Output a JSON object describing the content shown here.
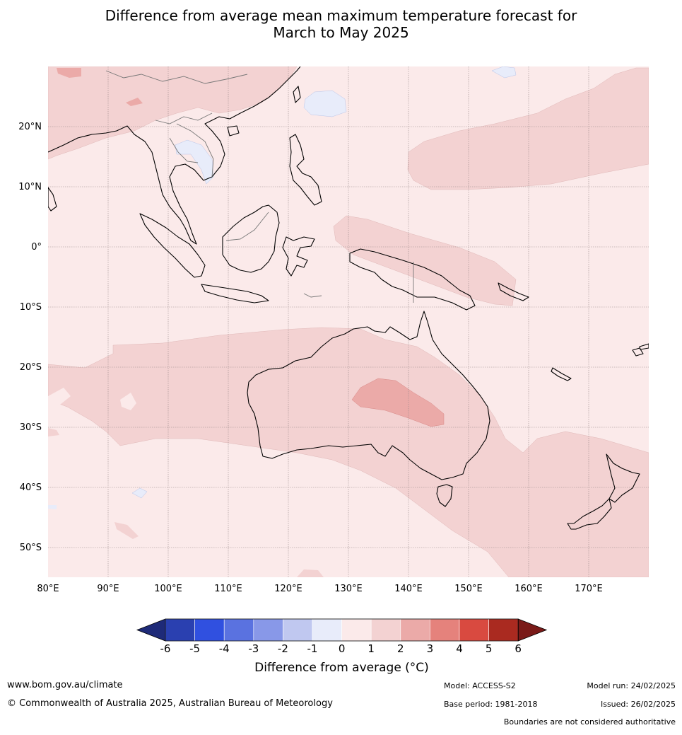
{
  "title": {
    "line1": "Difference from average mean maximum temperature forecast for",
    "line2": "March to May 2025"
  },
  "map": {
    "lon_labels": [
      "80°E",
      "90°E",
      "100°E",
      "110°E",
      "120°E",
      "130°E",
      "140°E",
      "150°E",
      "160°E",
      "170°E"
    ],
    "lat_labels": [
      "20°N",
      "10°N",
      "0°",
      "10°S",
      "20°S",
      "30°S",
      "40°S",
      "50°S"
    ],
    "extent": {
      "lon": [
        80,
        180
      ],
      "lat": [
        -55,
        30
      ]
    }
  },
  "colorbar": {
    "ticks": [
      "-6",
      "-5",
      "-4",
      "-3",
      "-2",
      "-1",
      "0",
      "1",
      "2",
      "3",
      "4",
      "5",
      "6"
    ],
    "colors": [
      "#1e2a78",
      "#2a40b0",
      "#3050e0",
      "#5a72e0",
      "#8898e8",
      "#c0c8f0",
      "#e8ecfa",
      "#fbeaea",
      "#f3d2d2",
      "#ebaaa8",
      "#e5827c",
      "#d94a40",
      "#aa2a20",
      "#7a1a18"
    ],
    "label": "Difference from average (°C)"
  },
  "footer": {
    "website": "www.bom.gov.au/climate",
    "copyright": "© Commonwealth of Australia 2025, Australian Bureau of Meteorology",
    "model": "Model: ACCESS-S2",
    "base_period": "Base period: 1981-2018",
    "model_run": "Model run: 24/02/2025",
    "issued": "Issued: 26/02/2025",
    "boundaries": "Boundaries are not considered authoritative"
  },
  "colors": {
    "bg_anomaly_0_1": "#fbeaea",
    "anomaly_1_2": "#f3d2d2",
    "anomaly_2_3": "#ebaaa8",
    "anomaly_neg1_0": "#e8ecfa"
  }
}
